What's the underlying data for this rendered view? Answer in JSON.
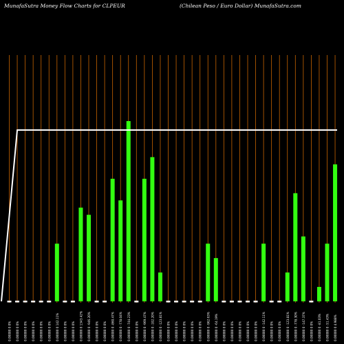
{
  "header": {
    "left": "MunafaSutra  Money Flow  Charts for CLPEUR",
    "right": "(Chilean  Peso  / Euro  Dollar) MunafaSutra.com"
  },
  "chart_data": {
    "type": "bar",
    "ylim": [
      0,
      100
    ],
    "x": [
      "0.00000 0 0%",
      "0.00000 0 0%",
      "0.00000 0 0%",
      "0.00000 0 0%",
      "0.00000 0 0%",
      "0.00000 0 0%",
      "0.00000 0 142.11%",
      "0.00000 0 0%",
      "0.00000 0 0%",
      "0.00000 0 1343.42%",
      "0.00000 0 -946.20%",
      "0.00000 0 0%",
      "0.00000 0 0%",
      "0.00000 0 -860.47%",
      "0.00000 0 -778.04%",
      "0.00000 0 -744.23%",
      "0.00000 0 0%",
      "0.00000 0 -969.47%",
      "0.00000 0 -102.20%",
      "0.00000 0 -123.81%",
      "0.00000 0 0%",
      "0.00000 0 0%",
      "0.00000 0 0%",
      "0.00000 0 0%",
      "0.00000 0 0%",
      "0.00000 0 -962.63%",
      "0.00000 0 -64.19%",
      "0.00000 0 0%",
      "0.00000 0 0%",
      "0.00000 0 0%",
      "0.00000 0 0%",
      "0.00000 0 0%",
      "0.00000 0 -142.11%",
      "0.00000 0 0%",
      "0.00000 0 0%",
      "0.00000 0 -123.81%",
      "0.00000 0 -778.30%",
      "0.00000 0 -147.37%",
      "0.00000 0 0%",
      "0.00000 0 -81.03%",
      "0.00000 0 -51.43%",
      "0.00000 0 4.988%"
    ],
    "values": [
      0,
      0,
      0,
      0,
      0,
      0,
      32,
      0,
      0,
      52,
      48,
      0,
      0,
      68,
      56,
      100,
      0,
      68,
      80,
      16,
      0,
      0,
      0,
      0,
      0,
      32,
      24,
      0,
      0,
      0,
      0,
      0,
      32,
      0,
      0,
      16,
      60,
      36,
      0,
      8,
      32,
      76
    ],
    "line": [
      0,
      95,
      95,
      95,
      95,
      95,
      95,
      95,
      95,
      95,
      95,
      95,
      95,
      95,
      95,
      95,
      95,
      95,
      95,
      95,
      95,
      95,
      95,
      95,
      95,
      95,
      95,
      95,
      95,
      95,
      95,
      95,
      95,
      95,
      95,
      95,
      95,
      95,
      95,
      95,
      95,
      95
    ],
    "colors": {
      "bar": "#33ff11",
      "grid": "#c86400",
      "line": "#ffffff"
    }
  }
}
